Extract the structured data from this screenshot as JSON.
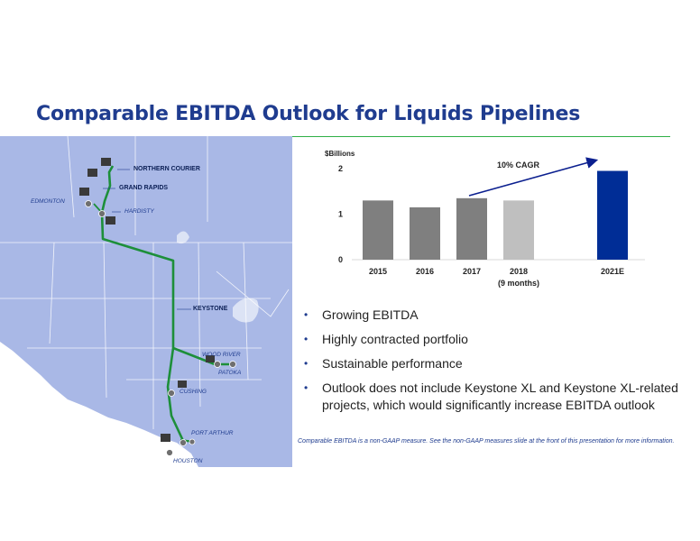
{
  "slide": {
    "title": "Comparable EBITDA Outlook for Liquids Pipelines",
    "footnote": "Comparable EBITDA is a non-GAAP measure.  See the non-GAAP measures slide at the front of this presentation for more information."
  },
  "map": {
    "labels": {
      "northern_courier": "NORTHERN COURIER",
      "grand_rapids": "GRAND RAPIDS",
      "edmonton": "EDMONTON",
      "hardisty": "HARDISTY",
      "keystone": "KEYSTONE",
      "wood_river": "WOOD RIVER",
      "patoka": "PATOKA",
      "cushing": "CUSHING",
      "port_arthur": "PORT ARTHUR",
      "houston": "HOUSTON"
    },
    "colors": {
      "land": "#a9b8e6",
      "pipeline": "#1d8f3a"
    }
  },
  "chart_data": {
    "type": "bar",
    "ylabel": "$Billions",
    "ylim": [
      0,
      2
    ],
    "yticks": [
      0,
      1,
      2
    ],
    "categories": [
      "2015",
      "2016",
      "2017",
      "2018",
      "2021E"
    ],
    "category_sublabels": [
      "",
      "",
      "",
      "(9 months)",
      ""
    ],
    "values": [
      1.3,
      1.15,
      1.35,
      1.3,
      1.95
    ],
    "colors": [
      "#7f7f7f",
      "#7f7f7f",
      "#7f7f7f",
      "#bfbfbf",
      "#002d96"
    ],
    "annotation": "10% CAGR"
  },
  "bullets": [
    "Growing EBITDA",
    "Highly contracted portfolio",
    "Sustainable performance",
    "Outlook does not include Keystone XL and Keystone XL-related projects, which would significantly increase EBITDA outlook"
  ]
}
